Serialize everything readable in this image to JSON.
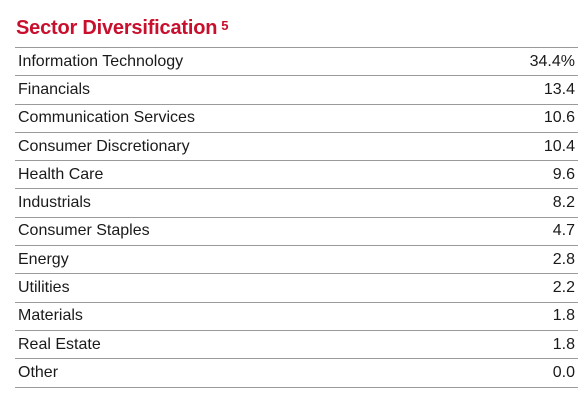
{
  "header": {
    "title": "Sector Diversification",
    "footnote": "5"
  },
  "table": {
    "rows": [
      {
        "sector": "Information Technology",
        "value": "34.4%"
      },
      {
        "sector": "Financials",
        "value": "13.4"
      },
      {
        "sector": "Communication Services",
        "value": "10.6"
      },
      {
        "sector": "Consumer Discretionary",
        "value": "10.4"
      },
      {
        "sector": "Health Care",
        "value": "9.6"
      },
      {
        "sector": "Industrials",
        "value": "8.2"
      },
      {
        "sector": "Consumer Staples",
        "value": "4.7"
      },
      {
        "sector": "Energy",
        "value": "2.8"
      },
      {
        "sector": "Utilities",
        "value": "2.2"
      },
      {
        "sector": "Materials",
        "value": "1.8"
      },
      {
        "sector": "Real Estate",
        "value": "1.8"
      },
      {
        "sector": "Other",
        "value": "0.0"
      }
    ]
  },
  "colors": {
    "title": "#c8102e",
    "rule": "#9a9a9a",
    "text": "#1a1a1a"
  }
}
